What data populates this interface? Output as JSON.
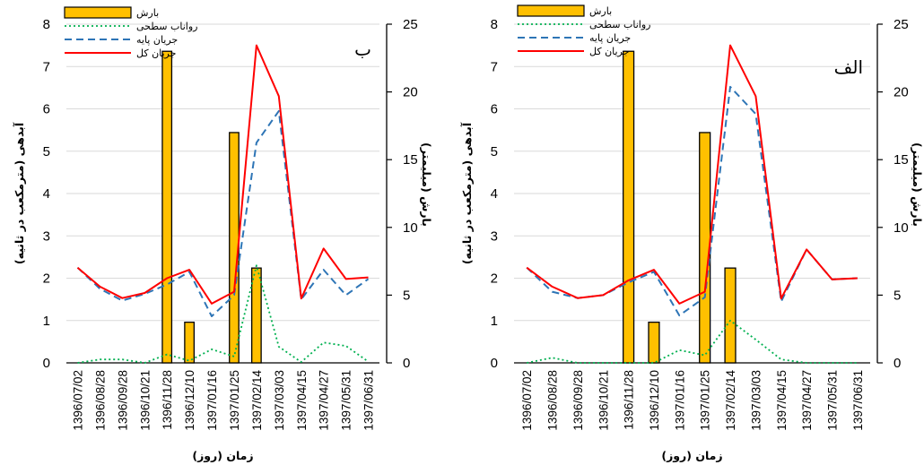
{
  "chart_data": [
    {
      "type": "bar+line",
      "panel_label": "ب",
      "categories": [
        "1396/07/02",
        "1396/08/28",
        "1396/09/28",
        "1396/10/21",
        "1396/11/28",
        "1396/12/10",
        "1397/01/16",
        "1397/01/25",
        "1397/02/14",
        "1397/03/03",
        "1397/04/15",
        "1397/04/27",
        "1397/05/31",
        "1397/06/31"
      ],
      "xlabel": "زمان (روز)",
      "ylabel_left": "آبدهی (مترمکعب در ثانیه)",
      "ylabel_right": "بارش (میلیمتر)",
      "ylim_left": [
        0,
        8
      ],
      "ylim_right": [
        0,
        25
      ],
      "yticks_left": [
        "0",
        "1",
        "2",
        "3",
        "4",
        "5",
        "6",
        "7",
        "8"
      ],
      "yticks_right": [
        "0",
        "5",
        "10",
        "15",
        "20",
        "25"
      ],
      "legend": {
        "placement": "top-left",
        "entries": [
          "بارش",
          "رواناب سطحی",
          "جریان پایه",
          "جریان کل"
        ]
      },
      "bars": {
        "name": "بارش",
        "color": "#FFC000",
        "axis": "right",
        "values": [
          0,
          0,
          0,
          0,
          23,
          3,
          0,
          17,
          7,
          0,
          0,
          0,
          0,
          0
        ]
      },
      "series": [
        {
          "name": "رواناب سطحی",
          "color": "#00B050",
          "style": "dotted",
          "values": [
            0,
            0.08,
            0.08,
            0,
            0.2,
            0.05,
            0.32,
            0.15,
            2.3,
            0.38,
            0.02,
            0.48,
            0.4,
            0.03
          ]
        },
        {
          "name": "جریان پایه",
          "color": "#2E75B6",
          "style": "dashed",
          "values": [
            2.25,
            1.75,
            1.47,
            1.63,
            1.85,
            2.15,
            1.1,
            1.6,
            5.2,
            5.95,
            1.5,
            2.2,
            1.6,
            1.98
          ]
        },
        {
          "name": "جریان کل",
          "color": "#FF0000",
          "style": "solid",
          "values": [
            2.25,
            1.8,
            1.53,
            1.65,
            2.0,
            2.2,
            1.4,
            1.68,
            7.5,
            6.3,
            1.52,
            2.7,
            1.98,
            2.02
          ]
        }
      ]
    },
    {
      "type": "bar+line",
      "panel_label": "الف",
      "categories": [
        "1396/07/02",
        "1396/08/28",
        "1396/09/28",
        "1396/10/21",
        "1396/11/28",
        "1396/12/10",
        "1397/01/16",
        "1397/01/25",
        "1397/02/14",
        "1397/03/03",
        "1397/04/15",
        "1397/04/27",
        "1397/05/31",
        "1397/06/31"
      ],
      "xlabel": "زمان (روز)",
      "ylabel_left": "آبدهی (مترمکعب در ثانیه)",
      "ylabel_right": "بارش (میلیمتر)",
      "ylim_left": [
        0,
        8
      ],
      "ylim_right": [
        0,
        25
      ],
      "yticks_left": [
        "0",
        "1",
        "2",
        "3",
        "4",
        "5",
        "6",
        "7",
        "8"
      ],
      "yticks_right": [
        "0",
        "5",
        "10",
        "15",
        "20",
        "25"
      ],
      "legend": {
        "placement": "top-left",
        "entries": [
          "بارش",
          "رواناب سطحی",
          "جریان پایه",
          "جریان کل"
        ]
      },
      "bars": {
        "name": "بارش",
        "color": "#FFC000",
        "axis": "right",
        "values": [
          0,
          0,
          0,
          0,
          23,
          3,
          0,
          17,
          7,
          0,
          0,
          0,
          0,
          0
        ]
      },
      "series": [
        {
          "name": "رواناب سطحی",
          "color": "#00B050",
          "style": "dotted",
          "values": [
            0,
            0.12,
            0,
            0,
            0,
            0,
            0.3,
            0.18,
            1.0,
            0.55,
            0.08,
            0,
            0,
            0
          ]
        },
        {
          "name": "جریان پایه",
          "color": "#2E75B6",
          "style": "dashed",
          "values": [
            2.25,
            1.68,
            1.53,
            1.6,
            1.9,
            2.15,
            1.12,
            1.55,
            6.52,
            5.88,
            1.45,
            2.68,
            1.97,
            2.0
          ]
        },
        {
          "name": "جریان کل",
          "color": "#FF0000",
          "style": "solid",
          "values": [
            2.25,
            1.8,
            1.53,
            1.6,
            1.95,
            2.2,
            1.4,
            1.68,
            7.5,
            6.3,
            1.52,
            2.68,
            1.97,
            2.0
          ]
        }
      ]
    }
  ]
}
